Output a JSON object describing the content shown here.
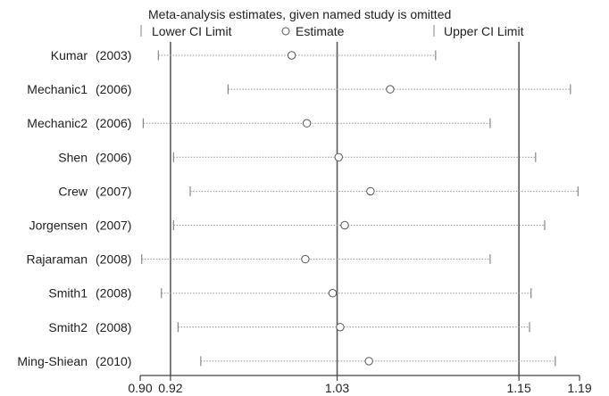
{
  "chart_data": {
    "type": "forest",
    "title": "Meta-analysis estimates, given named study is omitted",
    "legend": {
      "lower": "Lower CI Limit",
      "estimate": "Estimate",
      "upper": "Upper CI Limit",
      "placement": "top"
    },
    "xlim": [
      0.9,
      1.19
    ],
    "xticks": [
      "0.90",
      "0.92",
      "1.03",
      "1.15",
      "1.19"
    ],
    "reference_lines": [
      0.92,
      1.03,
      1.15
    ],
    "studies": [
      {
        "name": "Kumar",
        "year": "(2003)",
        "lower": 0.912,
        "estimate": 1.0,
        "upper": 1.095
      },
      {
        "name": "Mechanic1",
        "year": "(2006)",
        "lower": 0.958,
        "estimate": 1.065,
        "upper": 1.184
      },
      {
        "name": "Mechanic2",
        "year": "(2006)",
        "lower": 0.902,
        "estimate": 1.01,
        "upper": 1.131
      },
      {
        "name": "Shen",
        "year": "(2006)",
        "lower": 0.922,
        "estimate": 1.031,
        "upper": 1.161
      },
      {
        "name": "Crew",
        "year": "(2007)",
        "lower": 0.933,
        "estimate": 1.052,
        "upper": 1.189
      },
      {
        "name": "Jorgensen",
        "year": "(2007)",
        "lower": 0.922,
        "estimate": 1.035,
        "upper": 1.167
      },
      {
        "name": "Rajaraman",
        "year": "(2008)",
        "lower": 0.901,
        "estimate": 1.009,
        "upper": 1.131
      },
      {
        "name": "Smith1",
        "year": "(2008)",
        "lower": 0.914,
        "estimate": 1.027,
        "upper": 1.158
      },
      {
        "name": "Smith2",
        "year": "(2008)",
        "lower": 0.925,
        "estimate": 1.032,
        "upper": 1.157
      },
      {
        "name": "Ming-Shiean",
        "year": "(2010)",
        "lower": 0.94,
        "estimate": 1.051,
        "upper": 1.174
      }
    ]
  }
}
